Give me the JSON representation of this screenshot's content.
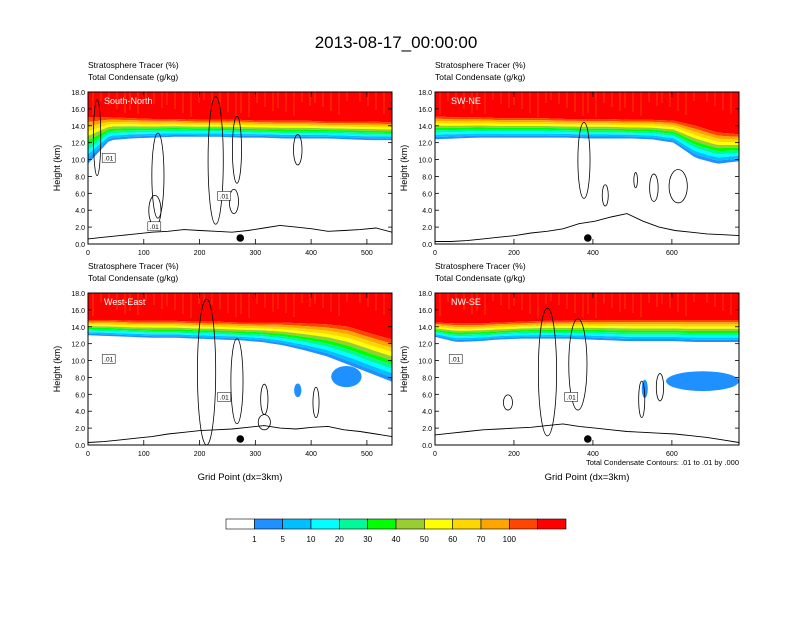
{
  "title": "2013-08-17_00:00:00",
  "contour_note": "Total Condensate Contours: .01 to .01 by .000",
  "x_axis_label": "Grid Point (dx=3km)",
  "colors": {
    "levels": [
      "#ffffff",
      "#1e90ff",
      "#00bfff",
      "#00ffff",
      "#00fa9a",
      "#00ff00",
      "#9acd32",
      "#ffff00",
      "#ffd700",
      "#ffa500",
      "#ff4500",
      "#ff0000"
    ],
    "contour": "#000000",
    "marker": "#000000"
  },
  "chart_data": [
    {
      "type": "heatmap",
      "panel": "South-North",
      "line1": "Stratosphere Tracer   (%)",
      "line2": "Total Condensate   (g/kg)",
      "ylabel": "Height (km)",
      "xlabel": "",
      "xlim": [
        0,
        545
      ],
      "ylim": [
        0,
        18
      ],
      "xticks": [
        "0",
        "100",
        "200",
        "300",
        "400",
        "500"
      ],
      "xtick_values": [
        0,
        100,
        200,
        300,
        400,
        500
      ],
      "yticks": [
        "0.0",
        "2.0",
        "4.0",
        "6.0",
        "8.0",
        "10.0",
        "12.0",
        "14.0",
        "16.0",
        "18.0"
      ],
      "tracer_top_km": [
        15.0,
        15.0,
        14.9,
        14.8,
        14.8,
        14.7,
        14.7,
        14.7,
        14.6,
        14.6,
        14.6,
        14.5,
        14.5,
        14.5,
        14.4
      ],
      "tracer_base_km": [
        9.5,
        12.3,
        12.5,
        12.6,
        12.7,
        12.7,
        12.7,
        12.6,
        12.6,
        12.5,
        12.5,
        12.5,
        12.4,
        12.3,
        12.3
      ],
      "terrain_km": [
        0.6,
        0.8,
        1.0,
        1.2,
        1.4,
        1.5,
        1.7,
        1.6,
        1.5,
        1.4,
        1.6,
        1.9,
        2.2,
        2.0,
        1.8,
        1.5,
        1.6,
        1.7,
        1.9,
        1.4
      ],
      "contour_labels": [
        ".01",
        ".01",
        ".01"
      ],
      "marker_x": 273
    },
    {
      "type": "heatmap",
      "panel": "SW-NE",
      "line1": "Stratosphere Tracer   (%)",
      "line2": "Total Condensate   (g/kg)",
      "ylabel": "Height (km)",
      "xlabel": "",
      "xlim": [
        0,
        770
      ],
      "ylim": [
        0,
        18
      ],
      "xticks": [
        "0",
        "200",
        "400",
        "600"
      ],
      "xtick_values": [
        0,
        200,
        400,
        600
      ],
      "yticks": [
        "0.0",
        "2.0",
        "4.0",
        "6.0",
        "8.0",
        "10.0",
        "12.0",
        "14.0",
        "16.0",
        "18.0"
      ],
      "tracer_top_km": [
        15.1,
        15.0,
        15.0,
        14.9,
        14.9,
        14.9,
        14.8,
        14.8,
        14.8,
        14.7,
        14.7,
        14.6,
        14.0,
        13.2,
        13.0
      ],
      "tracer_base_km": [
        12.4,
        12.5,
        12.6,
        12.6,
        12.6,
        12.6,
        12.6,
        12.5,
        12.5,
        12.5,
        12.4,
        12.0,
        10.2,
        9.5,
        9.8
      ],
      "terrain_km": [
        0.3,
        0.3,
        0.4,
        0.6,
        0.8,
        1.0,
        1.3,
        1.5,
        1.8,
        2.4,
        2.7,
        3.2,
        3.6,
        2.7,
        2.0,
        1.6,
        1.4,
        1.2,
        1.1,
        1.0
      ],
      "contour_labels": [],
      "marker_x": 387
    },
    {
      "type": "heatmap",
      "panel": "West-East",
      "line1": "Stratosphere Tracer   (%)",
      "line2": "Total Condensate   (g/kg)",
      "ylabel": "Height (km)",
      "xlabel": "Grid Point (dx=3km)",
      "xlim": [
        0,
        545
      ],
      "ylim": [
        0,
        18
      ],
      "xticks": [
        "0",
        "100",
        "200",
        "300",
        "400",
        "500"
      ],
      "xtick_values": [
        0,
        100,
        200,
        300,
        400,
        500
      ],
      "yticks": [
        "0.0",
        "2.0",
        "4.0",
        "6.0",
        "8.0",
        "10.0",
        "12.0",
        "14.0",
        "16.0",
        "18.0"
      ],
      "tracer_top_km": [
        14.8,
        14.8,
        14.7,
        14.7,
        14.7,
        14.6,
        14.6,
        14.5,
        14.5,
        14.5,
        14.4,
        14.3,
        14.0,
        13.2,
        12.5
      ],
      "tracer_base_km": [
        13.0,
        12.9,
        12.8,
        12.7,
        12.7,
        12.6,
        12.5,
        12.4,
        12.2,
        11.8,
        11.2,
        10.5,
        9.5,
        8.5,
        7.5
      ],
      "terrain_km": [
        0.3,
        0.4,
        0.6,
        0.8,
        1.0,
        1.3,
        1.5,
        1.7,
        1.8,
        1.9,
        2.1,
        2.3,
        2.0,
        1.9,
        2.1,
        2.2,
        1.8,
        1.6,
        1.3,
        1.0
      ],
      "contour_labels": [
        ".01",
        ".01"
      ],
      "marker_x": 273
    },
    {
      "type": "heatmap",
      "panel": "NW-SE",
      "line1": "Stratosphere Tracer   (%)",
      "line2": "Total Condensate   (g/kg)",
      "ylabel": "Height (km)",
      "xlabel": "Grid Point (dx=3km)",
      "xlim": [
        0,
        770
      ],
      "ylim": [
        0,
        18
      ],
      "xticks": [
        "0",
        "200",
        "400",
        "600"
      ],
      "xtick_values": [
        0,
        200,
        400,
        600
      ],
      "yticks": [
        "0.0",
        "2.0",
        "4.0",
        "6.0",
        "8.0",
        "10.0",
        "12.0",
        "14.0",
        "16.0",
        "18.0"
      ],
      "tracer_top_km": [
        14.5,
        14.4,
        14.4,
        14.5,
        14.6,
        14.7,
        14.7,
        14.8,
        14.8,
        14.8,
        14.8,
        14.8,
        14.8,
        14.8,
        14.8
      ],
      "tracer_base_km": [
        12.8,
        12.2,
        12.3,
        12.5,
        12.6,
        12.6,
        12.6,
        12.5,
        12.4,
        12.3,
        12.3,
        12.3,
        12.2,
        12.2,
        12.2
      ],
      "terrain_km": [
        1.2,
        1.4,
        1.6,
        1.8,
        1.9,
        2.0,
        2.1,
        2.3,
        2.5,
        2.2,
        2.0,
        1.8,
        1.6,
        1.5,
        1.4,
        1.3,
        1.1,
        0.9,
        0.6,
        0.3
      ],
      "contour_labels": [
        ".01",
        ".01"
      ],
      "marker_x": 387
    }
  ],
  "colorbar": {
    "labels": [
      "1",
      "5",
      "10",
      "20",
      "30",
      "40",
      "50",
      "60",
      "70",
      "100"
    ]
  }
}
